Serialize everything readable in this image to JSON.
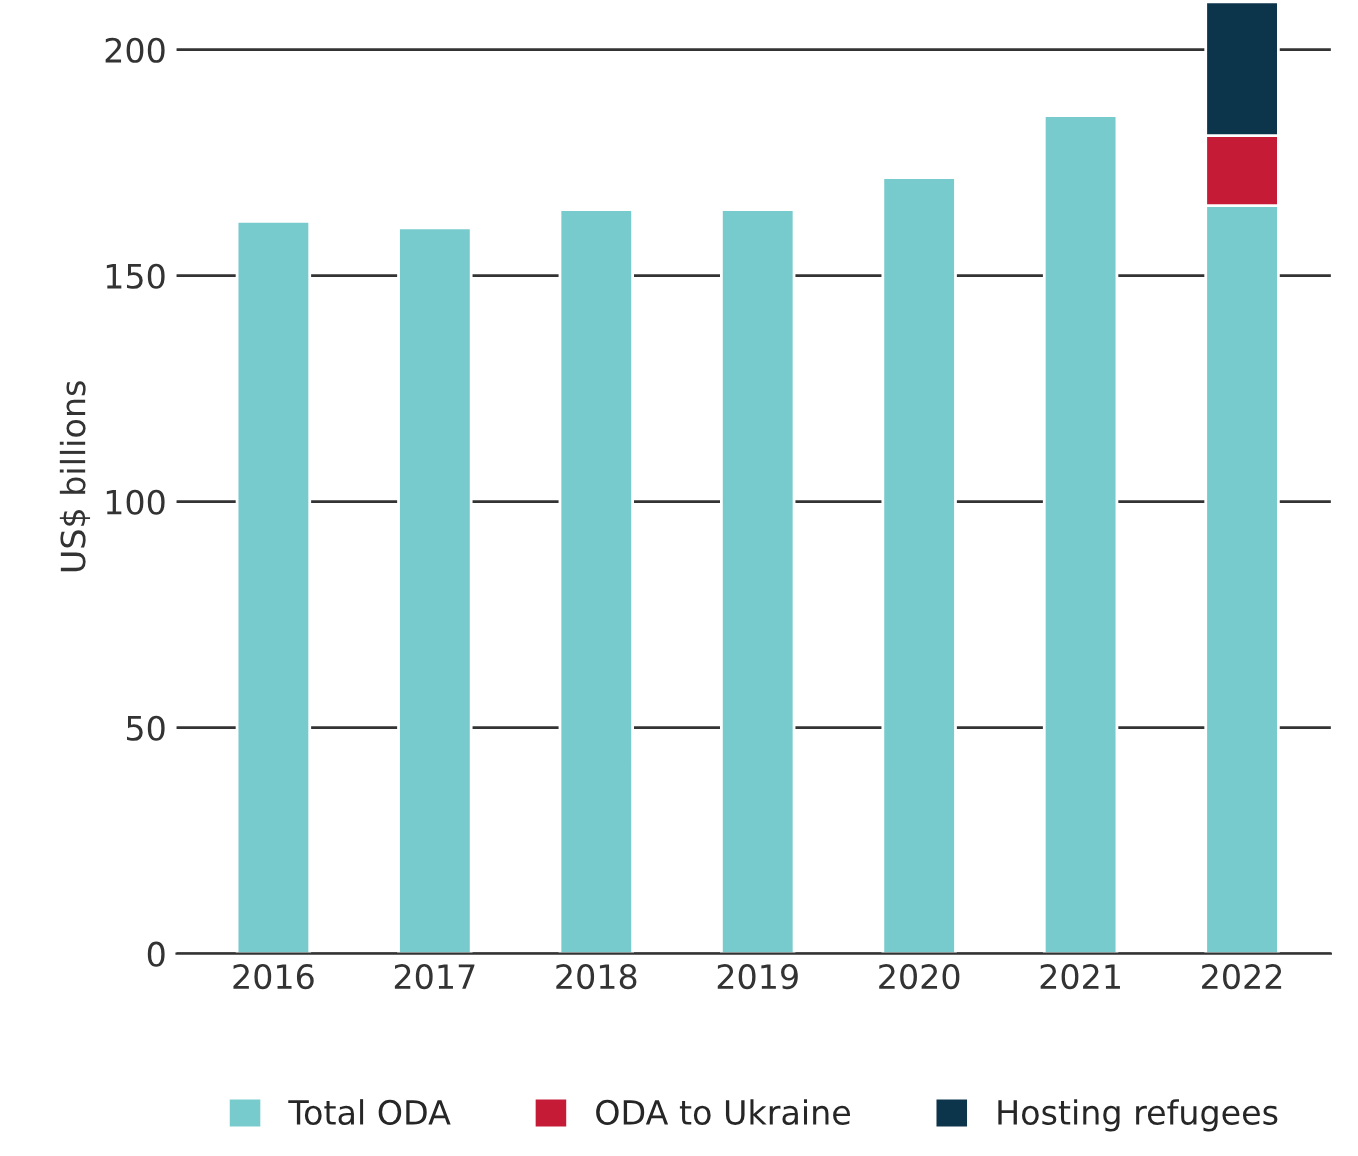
{
  "chart_data": {
    "type": "bar",
    "ylabel": "US$ billions",
    "categories": [
      "2016",
      "2017",
      "2018",
      "2019",
      "2020",
      "2021",
      "2022"
    ],
    "stacked": true,
    "series": [
      {
        "name": "Total ODA",
        "color": "#78cbcd",
        "values": [
          162,
          160.6,
          164.6,
          164.6,
          171.7,
          185.4,
          165.5
        ]
      },
      {
        "name": "ODA to Ukraine",
        "color": "#c51b36",
        "values": [
          null,
          null,
          null,
          null,
          null,
          null,
          15.5
        ]
      },
      {
        "name": "Hosting refugees",
        "color": "#0c344b",
        "values": [
          null,
          null,
          null,
          null,
          null,
          null,
          29.6
        ]
      }
    ],
    "ylim": [
      0,
      211
    ],
    "yticks": [
      0,
      50,
      100,
      150,
      200
    ],
    "grid": "y",
    "legend": "bottom"
  }
}
